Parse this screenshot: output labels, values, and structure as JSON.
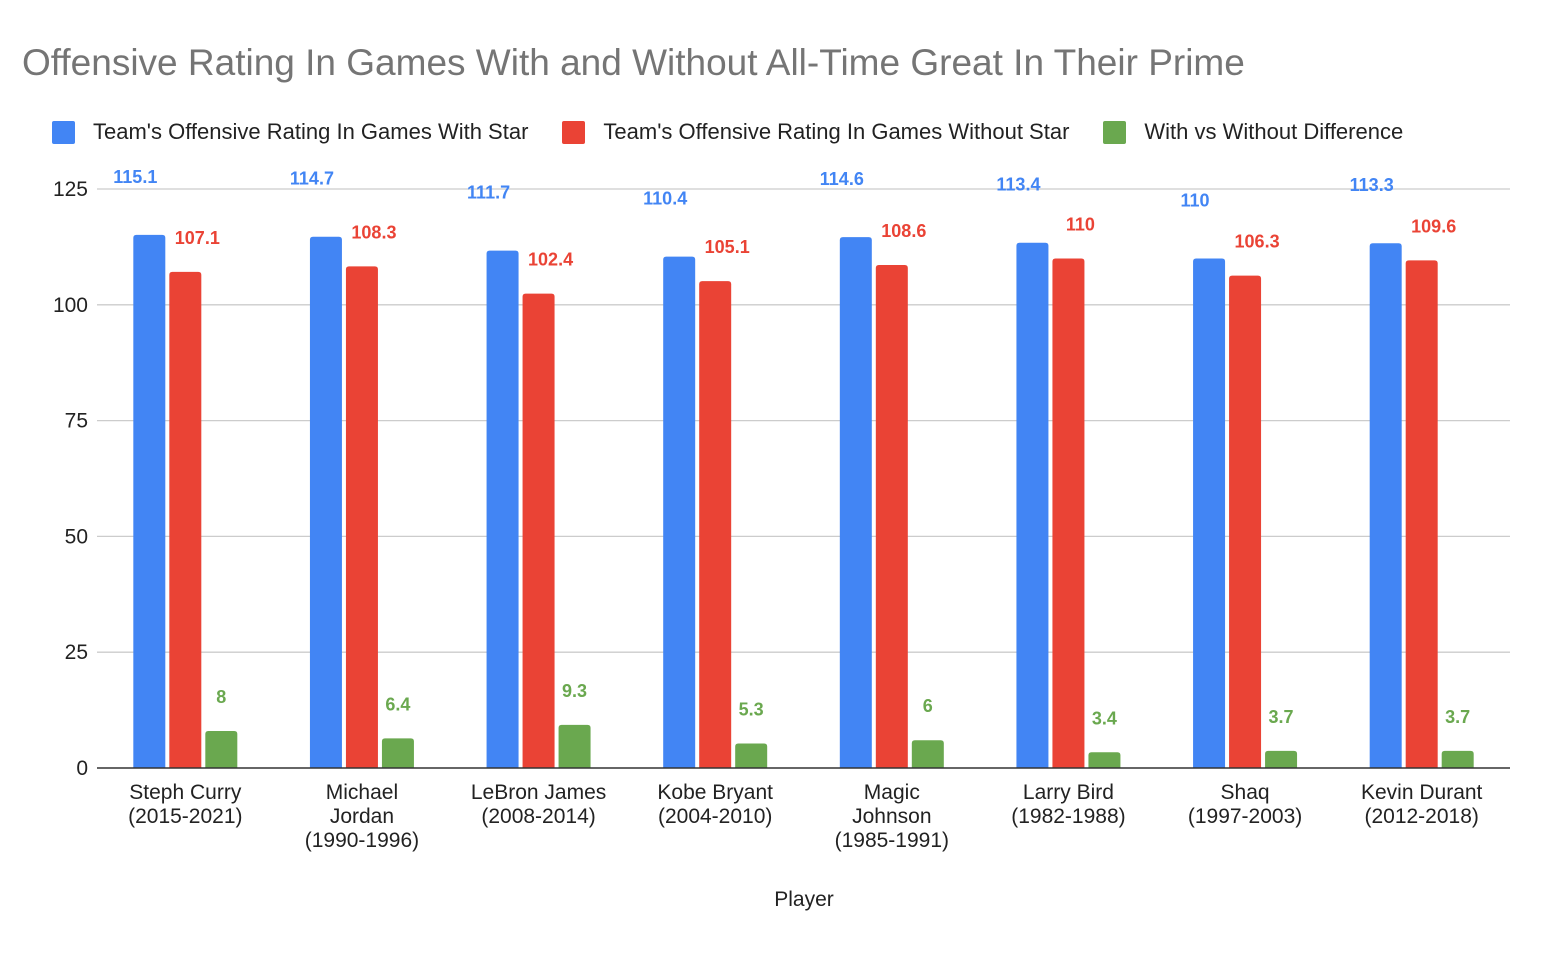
{
  "chart_data": {
    "type": "bar",
    "title": "Offensive Rating In Games With and Without All-Time Great In Their Prime",
    "xlabel": "Player",
    "ylabel": "",
    "ylim": [
      0,
      125
    ],
    "yticks": [
      0,
      25,
      50,
      75,
      100,
      125
    ],
    "grid": true,
    "legend_position": "top",
    "categories": [
      [
        "Steph Curry",
        "(2015-2021)"
      ],
      [
        "Michael",
        "Jordan",
        "(1990-1996)"
      ],
      [
        "LeBron James",
        "(2008-2014)"
      ],
      [
        "Kobe Bryant",
        "(2004-2010)"
      ],
      [
        "Magic",
        "Johnson",
        "(1985-1991)"
      ],
      [
        "Larry Bird",
        "(1982-1988)"
      ],
      [
        "Shaq",
        "(1997-2003)"
      ],
      [
        "Kevin Durant",
        "(2012-2018)"
      ]
    ],
    "series": [
      {
        "name": "Team's Offensive Rating In Games With Star",
        "color": "#4285f4",
        "values": [
          115.1,
          114.7,
          111.7,
          110.4,
          114.6,
          113.4,
          110,
          113.3
        ]
      },
      {
        "name": "Team's Offensive Rating In Games Without Star",
        "color": "#ea4335",
        "values": [
          107.1,
          108.3,
          102.4,
          105.1,
          108.6,
          110,
          106.3,
          109.6
        ]
      },
      {
        "name": "With vs Without Difference",
        "color": "#6aa84f",
        "values": [
          8,
          6.4,
          9.3,
          5.3,
          6,
          3.4,
          3.7,
          3.7
        ]
      }
    ]
  }
}
